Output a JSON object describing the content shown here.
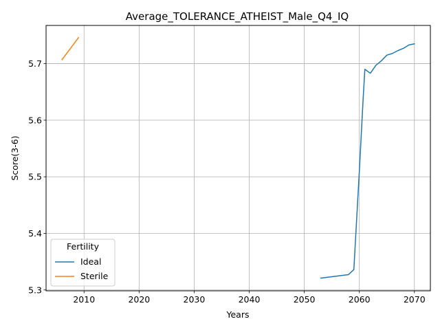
{
  "chart_data": {
    "type": "line",
    "title": "Average_TOLERANCE_ATHEIST_Male_Q4_IQ",
    "xlabel": "Years",
    "ylabel": "Score(3-6)",
    "xlim": [
      2003.1,
      2072.9
    ],
    "ylim": [
      5.2985,
      5.7675
    ],
    "xticks": [
      2010,
      2020,
      2030,
      2040,
      2050,
      2060,
      2070
    ],
    "yticks": [
      5.3,
      5.4,
      5.5,
      5.6,
      5.7
    ],
    "grid": true,
    "legend": {
      "title": "Fertility",
      "placement": "lower-left"
    },
    "series": [
      {
        "name": "Ideal",
        "color": "#1f77b4",
        "x": [
          2053,
          2058,
          2059,
          2060,
          2060.7,
          2061,
          2062,
          2063,
          2064,
          2065,
          2066,
          2067,
          2068,
          2069,
          2070
        ],
        "y": [
          5.321,
          5.327,
          5.336,
          5.51,
          5.64,
          5.69,
          5.683,
          5.697,
          5.705,
          5.715,
          5.718,
          5.723,
          5.727,
          5.733,
          5.735
        ]
      },
      {
        "name": "Sterile",
        "color": "#ff7f0e",
        "x": [
          2006,
          2009
        ],
        "y": [
          5.707,
          5.746
        ]
      }
    ]
  }
}
